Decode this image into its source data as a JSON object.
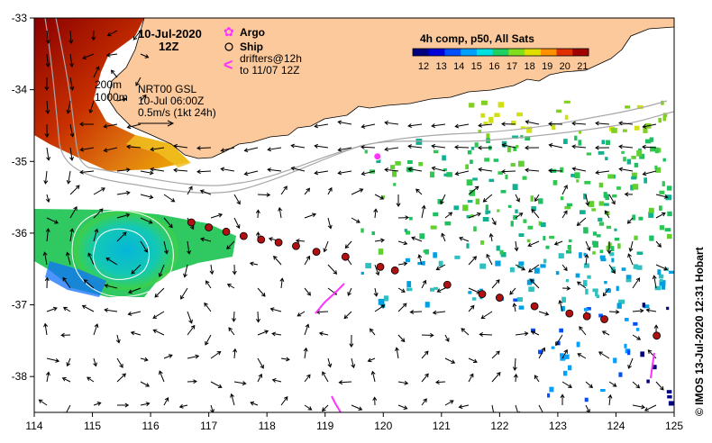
{
  "title": {
    "date": "10-Jul-2020",
    "time": "12Z"
  },
  "legend": {
    "argo_label": "Argo",
    "ship_label": "Ship",
    "drifters_line1": "drifters@12h",
    "drifters_line2": "to 11/07 12Z",
    "argo_color": "#ff33ff",
    "drifter_color": "#ff33ff"
  },
  "isobaths": {
    "shallow": "200m",
    "deep": "1000m"
  },
  "current_info": {
    "line1": "NRT00 GSL",
    "line2": "10-Jul 06:00Z",
    "line3": "0.5m/s (1kt 24h)"
  },
  "colorbar": {
    "title": "4h comp, p50, All Sats",
    "labels": [
      "12",
      "13",
      "14",
      "15",
      "16",
      "17",
      "18",
      "19",
      "20",
      "21"
    ],
    "colors": [
      "#000080",
      "#0000d8",
      "#0050ff",
      "#00a0ff",
      "#00e0e0",
      "#20d060",
      "#80e020",
      "#e0e000",
      "#ff9000",
      "#e03000",
      "#a00000"
    ]
  },
  "axes": {
    "x_ticks": [
      "114",
      "115",
      "116",
      "117",
      "118",
      "119",
      "120",
      "121",
      "122",
      "123",
      "124",
      "125"
    ],
    "y_ticks": [
      "-33",
      "-34",
      "-35",
      "-36",
      "-37",
      "-38"
    ]
  },
  "credit": "© IMOS 13-Jul-2020 12:31 Hobart",
  "ship_track": [
    [
      116.7,
      -35.85
    ],
    [
      117.0,
      -35.92
    ],
    [
      117.3,
      -35.98
    ],
    [
      117.6,
      -36.04
    ],
    [
      117.9,
      -36.09
    ],
    [
      118.2,
      -36.13
    ],
    [
      118.5,
      -36.18
    ],
    [
      118.85,
      -36.26
    ],
    [
      119.35,
      -36.33
    ],
    [
      119.95,
      -36.47
    ],
    [
      120.2,
      -36.52
    ],
    [
      121.1,
      -36.72
    ],
    [
      121.7,
      -36.85
    ],
    [
      122.0,
      -36.9
    ],
    [
      122.6,
      -37.02
    ],
    [
      123.2,
      -37.12
    ],
    [
      123.5,
      -37.16
    ],
    [
      123.8,
      -37.2
    ],
    [
      124.7,
      -37.43
    ]
  ],
  "argo_float": [
    119.9,
    -34.93
  ]
}
